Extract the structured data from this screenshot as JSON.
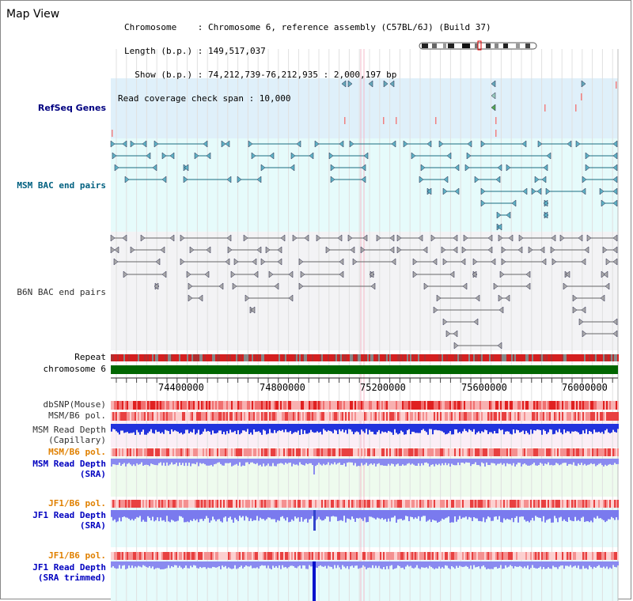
{
  "title": "Map View",
  "header": {
    "chromosome": "Chromosome    : Chromosome 6, reference assembly (C57BL/6J) (Build 37)",
    "length": "Length (b.p.) : 149,517,037",
    "show": "  Show (b.p.) : 74,212,739-76,212,935 : 2,000,197 bp",
    "read_cov": "Read coverage check span : 10,000"
  },
  "tracks": {
    "refseq": "RefSeq Genes",
    "msm_bac": "MSM BAC end pairs",
    "b6n_bac": "B6N BAC end pairs",
    "repeat": "Repeat",
    "chromosome": "chromosome 6",
    "dbsnp": "dbSNP(Mouse)",
    "msm_b6_pol_1": "MSM/B6 pol.",
    "msm_depth_cap_1": "MSM Read Depth",
    "msm_depth_cap_2": "(Capillary)",
    "msm_b6_pol_2": "MSM/B6 pol.",
    "msm_depth_sra_1": "MSM Read Depth",
    "msm_depth_sra_2": "(SRA)",
    "jf1_pol_1": "JF1/B6 pol.",
    "jf1_depth_1": "JF1 Read Depth",
    "jf1_depth_2": "(SRA)",
    "jf1_pol_2": "JF1/B6 pol.",
    "jf1_trim_1": "JF1 Read Depth",
    "jf1_trim_2": "(SRA trimmed)"
  },
  "axis": {
    "ticks": [
      "74400000",
      "74800000",
      "75200000",
      "75600000",
      "76000000"
    ]
  },
  "colors": {
    "refseq_bg": "#dff0fa",
    "msm_bg": "#e6fbfb",
    "b6n_bg": "#f3f3f5",
    "chrom_green": "#006600",
    "depth_blue": "#2233dd",
    "depth_light": "#7a7aee",
    "pol_red": "#e02020"
  },
  "icons": {
    "ideogram": "chromosome-ideogram-icon"
  }
}
